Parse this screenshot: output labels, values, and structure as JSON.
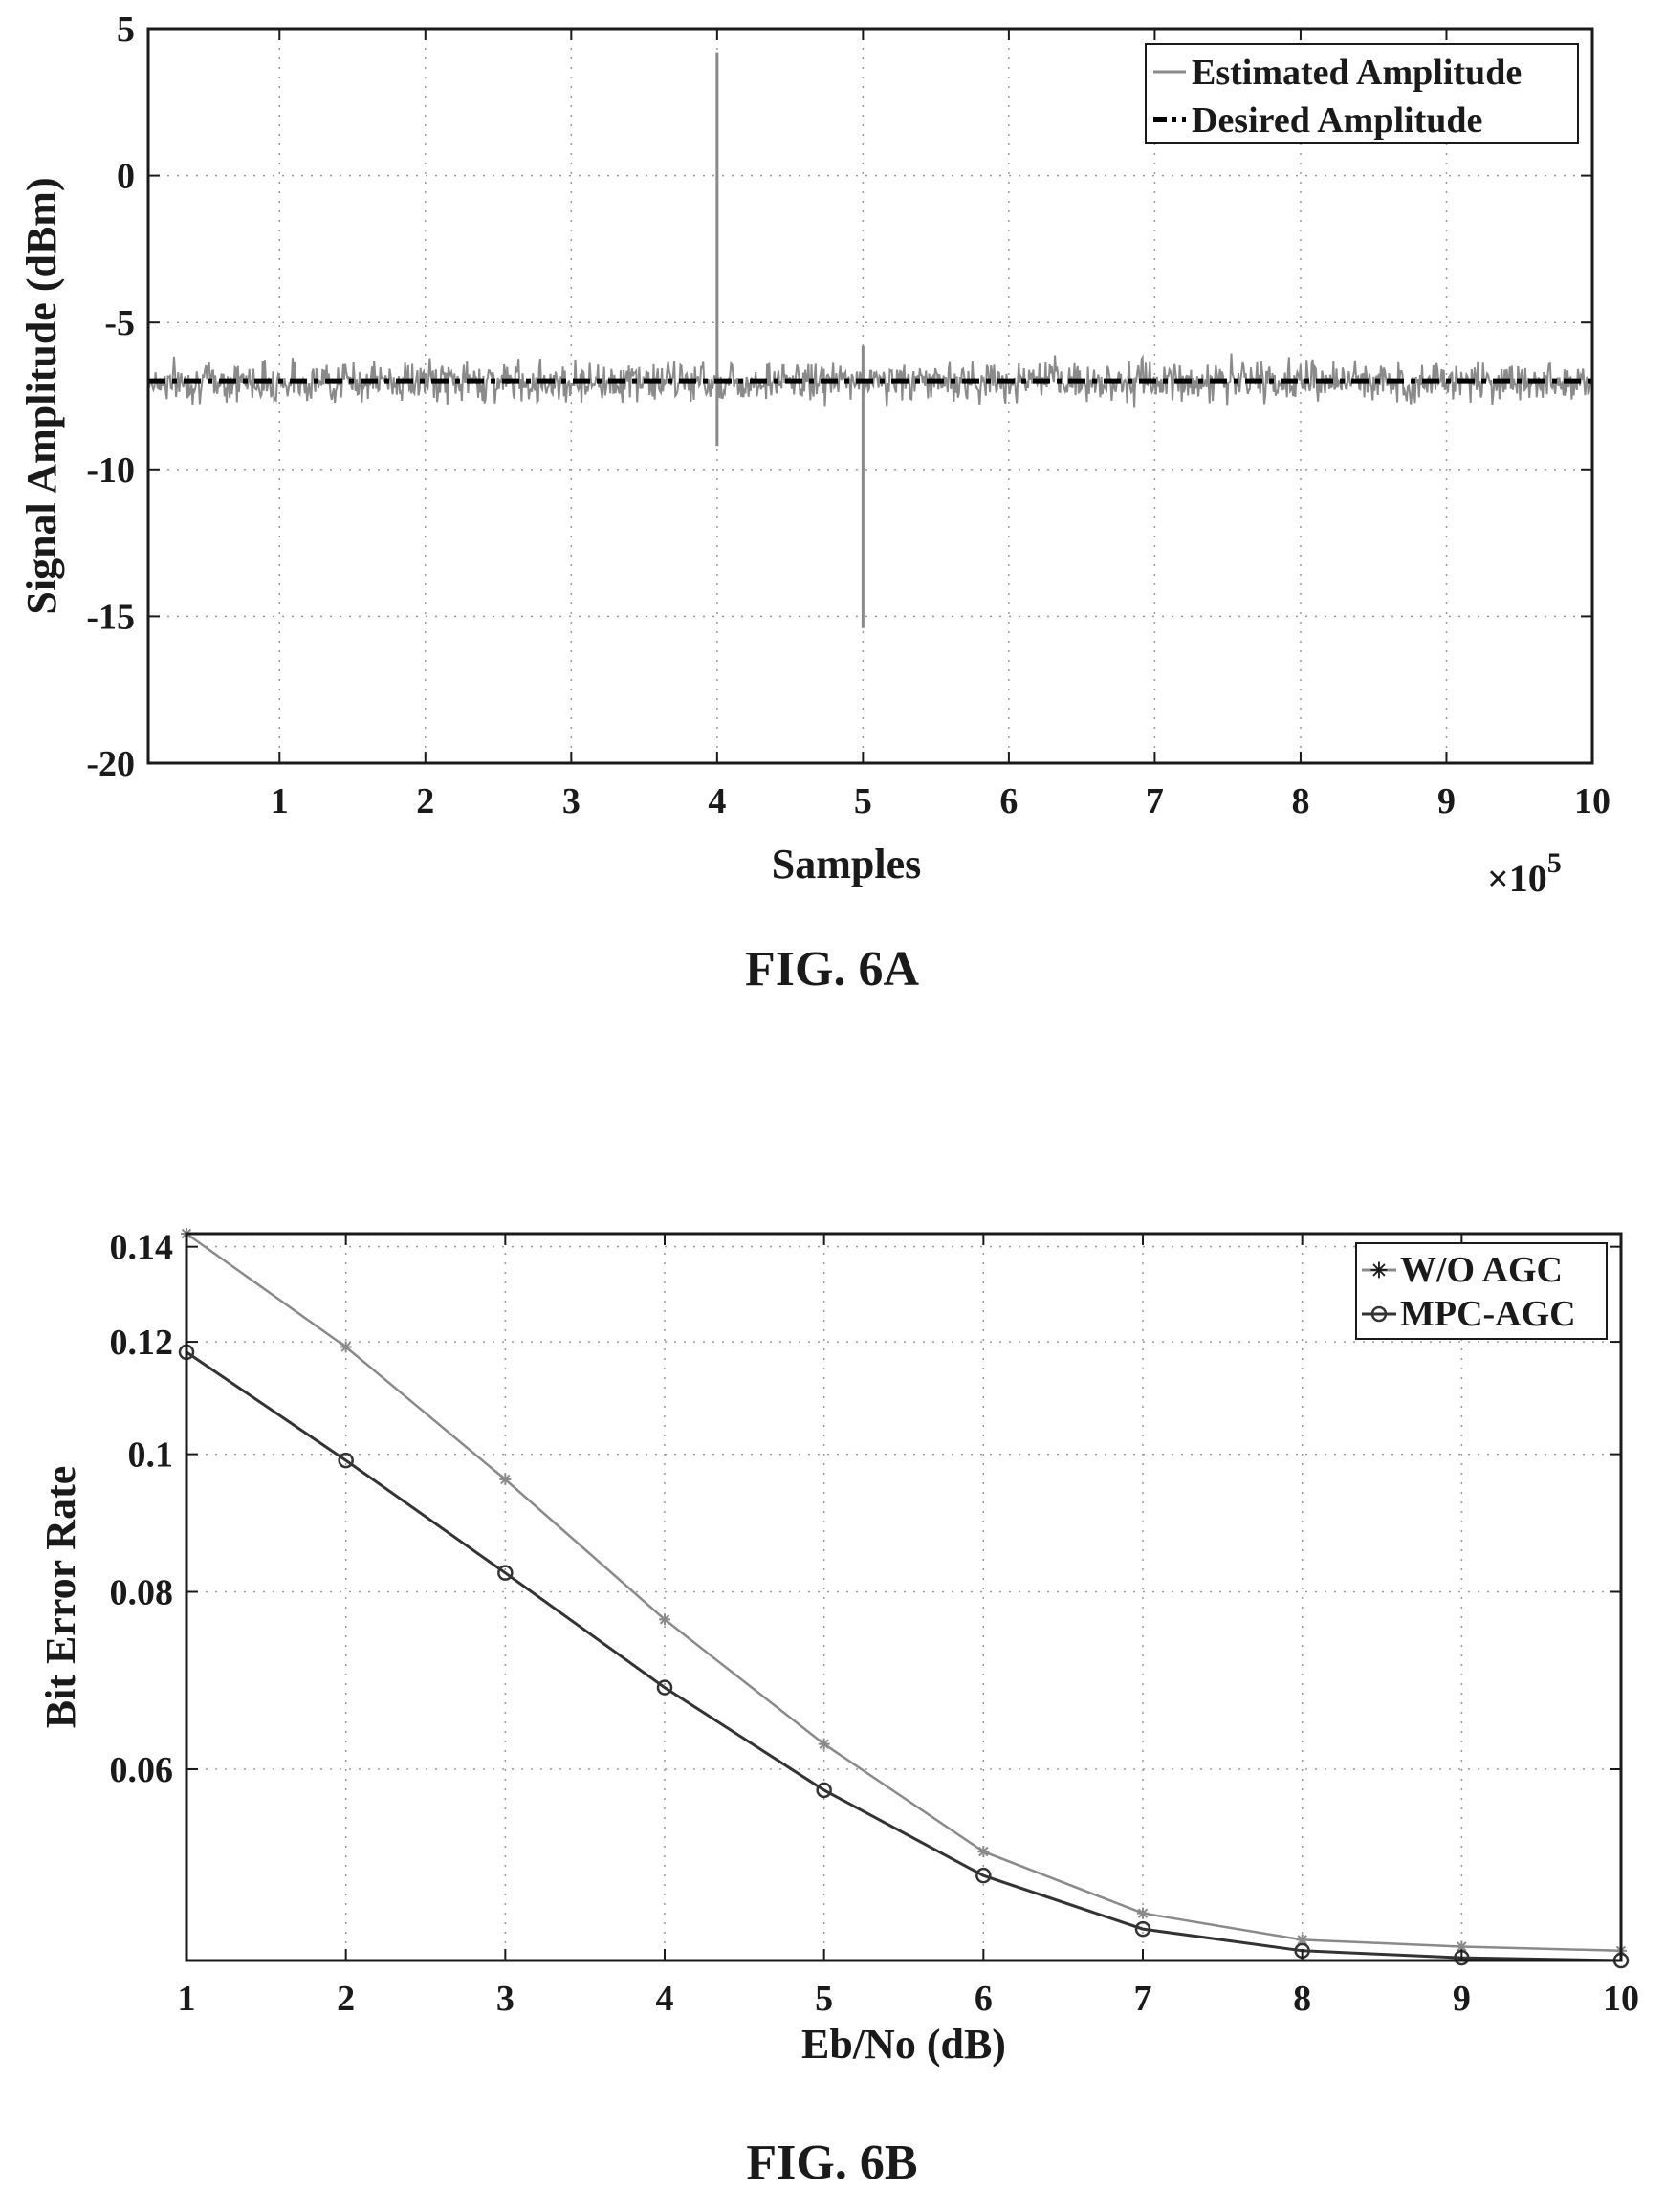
{
  "chart_data": [
    {
      "type": "line",
      "caption": "FIG. 6A",
      "xlabel": "Samples",
      "ylabel": "Signal Amplitude (dBm)",
      "x_multiplier": "×10",
      "x_multiplier_exp": "5",
      "xlim": [
        0.1,
        10
      ],
      "ylim": [
        -20,
        5
      ],
      "xticks": [
        1,
        2,
        3,
        4,
        5,
        6,
        7,
        8,
        9,
        10
      ],
      "yticks": [
        5,
        0,
        -5,
        -10,
        -15,
        -20
      ],
      "grid": true,
      "legend_position": "top-right",
      "colors": {
        "estimated": "#8a8a8a",
        "desired": "#000000",
        "axis": "#1a1a1a"
      },
      "series": [
        {
          "name": "Estimated Amplitude",
          "style": "solid",
          "baseline": -7,
          "noise_band": [
            -8,
            -6
          ],
          "spikes": [
            {
              "x": 4,
              "y_top": 4.2,
              "y_bottom": -9.2
            },
            {
              "x": 5,
              "y_top": -5.8,
              "y_bottom": -15.4
            }
          ]
        },
        {
          "name": "Desired Amplitude",
          "style": "dash-dot",
          "x": [
            0.1,
            10
          ],
          "y": [
            -7,
            -7
          ]
        }
      ]
    },
    {
      "type": "line",
      "caption": "FIG. 6B",
      "xlabel": "Eb/No (dB)",
      "ylabel": "Bit Error Rate",
      "log_y": true,
      "xlim": [
        1,
        10
      ],
      "ylim": [
        0.044,
        0.143
      ],
      "xticks": [
        1,
        2,
        3,
        4,
        5,
        6,
        7,
        8,
        9,
        10
      ],
      "yticks": [
        0.14,
        0.12,
        0.1,
        0.08,
        0.06
      ],
      "ytick_labels": [
        "0.14",
        "0.12",
        "0.1",
        "0.08",
        "0.06"
      ],
      "grid": true,
      "legend_position": "top-right",
      "colors": {
        "wo_agc": "#8a8a8a",
        "mpc_agc": "#333333",
        "axis": "#1a1a1a"
      },
      "x": [
        1,
        2,
        3,
        4,
        5,
        6,
        7,
        8,
        9,
        10
      ],
      "series": [
        {
          "name": "W/O AGC",
          "marker": "star",
          "values": [
            0.143,
            0.119,
            0.096,
            0.0765,
            0.0625,
            0.0525,
            0.0475,
            0.0455,
            0.045,
            0.0447
          ]
        },
        {
          "name": "MPC-AGC",
          "marker": "circle",
          "values": [
            0.118,
            0.099,
            0.0825,
            0.0685,
            0.058,
            0.0505,
            0.0463,
            0.0447,
            0.0442,
            0.044
          ]
        }
      ]
    }
  ]
}
